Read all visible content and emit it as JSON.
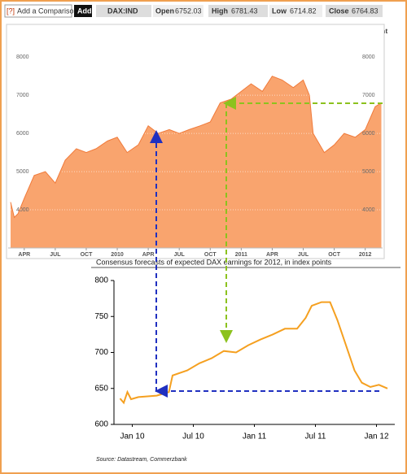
{
  "toolbar": {
    "help": "[?]",
    "compare": "Add a Comparison",
    "add": "Add",
    "symbol": "DAX:IND",
    "open_label": "Open",
    "open": 6752.03,
    "high_label": "High",
    "high": 6781.43,
    "low_label": "Low",
    "low": 6714.82,
    "close_label": "Close",
    "close": 6764.83,
    "print": "Print"
  },
  "chart_data": [
    {
      "type": "area",
      "color": "#f9a46e",
      "line_color": "#f07a3a",
      "grid": true,
      "x": [
        2009.14,
        2009.17,
        2009.2,
        2009.25,
        2009.33,
        2009.42,
        2009.5,
        2009.58,
        2009.67,
        2009.75,
        2009.83,
        2009.92,
        2010.0,
        2010.08,
        2010.17,
        2010.25,
        2010.33,
        2010.42,
        2010.5,
        2010.58,
        2010.67,
        2010.75,
        2010.83,
        2010.92,
        2011.0,
        2011.08,
        2011.17,
        2011.25,
        2011.33,
        2011.42,
        2011.5,
        2011.55,
        2011.58,
        2011.67,
        2011.75,
        2011.83,
        2011.92,
        2012.0,
        2012.08,
        2012.13
      ],
      "values": [
        4200,
        3800,
        3900,
        4300,
        4900,
        5000,
        4700,
        5300,
        5600,
        5500,
        5600,
        5800,
        5900,
        5500,
        5700,
        6200,
        6000,
        6100,
        6000,
        6100,
        6200,
        6300,
        6800,
        6900,
        7100,
        7300,
        7100,
        7500,
        7400,
        7200,
        7400,
        7000,
        6000,
        5500,
        5700,
        6000,
        5900,
        6100,
        6700,
        6800
      ],
      "xlim": [
        2009.12,
        2012.14
      ],
      "ylim": [
        3000,
        8600
      ],
      "xticks": [
        {
          "value": 2009.25,
          "label": "APR"
        },
        {
          "value": 2009.5,
          "label": "JUL"
        },
        {
          "value": 2009.75,
          "label": "OCT"
        },
        {
          "value": 2010,
          "label": "2010"
        },
        {
          "value": 2010.25,
          "label": "APR"
        },
        {
          "value": 2010.5,
          "label": "JUL"
        },
        {
          "value": 2010.75,
          "label": "OCT"
        },
        {
          "value": 2011,
          "label": "2011"
        },
        {
          "value": 2011.25,
          "label": "APR"
        },
        {
          "value": 2011.5,
          "label": "JUL"
        },
        {
          "value": 2011.75,
          "label": "OCT"
        },
        {
          "value": 2012,
          "label": "2012"
        }
      ],
      "yticks": [
        4000,
        5000,
        6000,
        7000,
        8000
      ]
    },
    {
      "type": "line",
      "color": "#f5a020",
      "title": "Consensus forecasts of expected DAX earnings for 2012, in index points",
      "source": "Source: Datastream, Commerzbank",
      "x": [
        2009.9,
        2009.93,
        2009.96,
        2009.99,
        2010.05,
        2010.2,
        2010.3,
        2010.33,
        2010.45,
        2010.55,
        2010.65,
        2010.75,
        2010.85,
        2010.95,
        2011.05,
        2011.15,
        2011.25,
        2011.35,
        2011.42,
        2011.47,
        2011.55,
        2011.62,
        2011.68,
        2011.75,
        2011.82,
        2011.88,
        2011.95,
        2012.02,
        2012.09
      ],
      "values": [
        636,
        630,
        645,
        635,
        638,
        640,
        645,
        668,
        675,
        685,
        692,
        702,
        700,
        710,
        718,
        725,
        733,
        733,
        748,
        765,
        770,
        770,
        745,
        710,
        675,
        658,
        652,
        655,
        650
      ],
      "xlim": [
        2009.85,
        2012.15
      ],
      "ylim": [
        600,
        800
      ],
      "xticks": [
        {
          "value": 2010,
          "label": "Jan 10"
        },
        {
          "value": 2010.5,
          "label": "Jul 10"
        },
        {
          "value": 2011,
          "label": "Jan 11"
        },
        {
          "value": 2011.5,
          "label": "Jul 11"
        },
        {
          "value": 2012,
          "label": "Jan 12"
        }
      ],
      "yticks": [
        600,
        650,
        700,
        750,
        800
      ]
    }
  ]
}
